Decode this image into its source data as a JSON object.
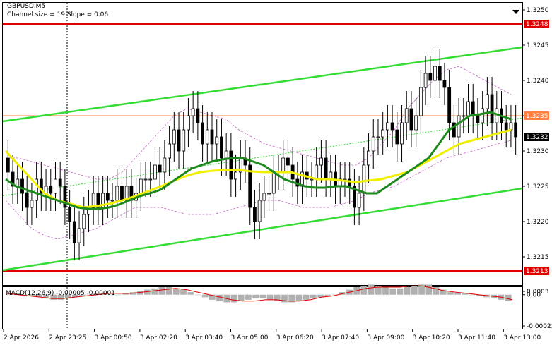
{
  "header": {
    "symbol": "GBPUSD,M5",
    "indicator": "Channel size = 19 Slope = 0.06"
  },
  "colors": {
    "bull_candle": "#ffffff",
    "bear_candle": "#000000",
    "ma_fast": "#1e8a1e",
    "ma_slow": "#f0f000",
    "channel": "#33dd33",
    "level_line": "#e00000",
    "hline": "#ff8040",
    "bollinger": "#c060c0",
    "macd_hist": "#b0b0b0",
    "macd_signal": "#e00000"
  },
  "chart_data": [
    {
      "type": "candlestick",
      "symbol": "GBPUSD",
      "timeframe": "M5",
      "ylim": [
        1.3211,
        1.3251
      ],
      "y_ticks": [
        "1.3250",
        "1.3245",
        "1.3240",
        "1.3235",
        "1.3230",
        "1.3225",
        "1.3220",
        "1.3215"
      ],
      "x_tick_labels": [
        "2 Apr 2026",
        "2 Apr 23:25",
        "3 Apr 00:50",
        "3 Apr 02:20",
        "3 Apr 03:40",
        "3 Apr 05:00",
        "3 Apr 06:20",
        "3 Apr 07:40",
        "3 Apr 09:00",
        "3 Apr 10:20",
        "3 Apr 11:40",
        "3 Apr 13:00"
      ],
      "levels": [
        {
          "label": "1.3248",
          "value": 1.3248
        },
        {
          "label": "1.3235",
          "value": 1.3235
        },
        {
          "label": "1.3213",
          "value": 1.3213
        }
      ],
      "current_price": {
        "label": "1.3232",
        "value": 1.3232
      },
      "channel_lines": [
        {
          "name": "upper",
          "from": 1.32342,
          "to": 1.32447
        },
        {
          "name": "lower",
          "from": 1.32131,
          "to": 1.32247
        }
      ],
      "close": [
        1.3227,
        1.3225,
        1.3226,
        1.3224,
        1.3222,
        1.3223,
        1.3226,
        1.3224,
        1.3225,
        1.3224,
        1.3226,
        1.3225,
        1.3222,
        1.322,
        1.3217,
        1.3219,
        1.3221,
        1.3222,
        1.3224,
        1.3222,
        1.3224,
        1.3223,
        1.3223,
        1.3225,
        1.3223,
        1.3225,
        1.3223,
        1.3224,
        1.3226,
        1.3226,
        1.3226,
        1.3228,
        1.3227,
        1.3229,
        1.3231,
        1.3233,
        1.323,
        1.3233,
        1.3235,
        1.3236,
        1.3234,
        1.3231,
        1.3233,
        1.3231,
        1.3232,
        1.3229,
        1.323,
        1.3226,
        1.3227,
        1.3229,
        1.3228,
        1.3222,
        1.322,
        1.3223,
        1.3224,
        1.3224,
        1.3227,
        1.3227,
        1.3229,
        1.3228,
        1.3226,
        1.3225,
        1.3227,
        1.3226,
        1.3226,
        1.3228,
        1.3229,
        1.3226,
        1.3227,
        1.3225,
        1.3226,
        1.3226,
        1.3225,
        1.3222,
        1.3224,
        1.3228,
        1.323,
        1.3232,
        1.3232,
        1.3233,
        1.3234,
        1.3233,
        1.3231,
        1.3234,
        1.3236,
        1.3233,
        1.3235,
        1.3239,
        1.3241,
        1.324,
        1.3242,
        1.324,
        1.3239,
        1.3234,
        1.3232,
        1.3235,
        1.3235,
        1.3237,
        1.3235,
        1.3234,
        1.3236,
        1.3238,
        1.3234,
        1.3236,
        1.3234,
        1.3233,
        1.3234,
        1.3232
      ],
      "ma_fast": [
        1.3226,
        1.3225,
        1.32245,
        1.3224,
        1.32235,
        1.3223,
        1.32225,
        1.3222,
        1.32218,
        1.32218,
        1.3222,
        1.32224,
        1.3223,
        1.32236,
        1.3224,
        1.32245,
        1.32255,
        1.32265,
        1.32275,
        1.3228,
        1.32285,
        1.32288,
        1.3229,
        1.3229,
        1.32285,
        1.3228,
        1.3227,
        1.3226,
        1.32255,
        1.3225,
        1.32248,
        1.32248,
        1.3225,
        1.3225,
        1.32245,
        1.3224,
        1.3224,
        1.3225,
        1.3226,
        1.3227,
        1.3228,
        1.3229,
        1.3231,
        1.3233,
        1.3234,
        1.3235,
        1.32352,
        1.32355,
        1.3235,
        1.32345
      ],
      "ma_slow": [
        1.323,
        1.3228,
        1.3226,
        1.3224,
        1.3223,
        1.32225,
        1.3222,
        1.32222,
        1.32225,
        1.3223,
        1.32236,
        1.32243,
        1.3225,
        1.32258,
        1.32265,
        1.3227,
        1.32272,
        1.32273,
        1.32273,
        1.32271,
        1.3227,
        1.3227,
        1.3227,
        1.32265,
        1.3226,
        1.3226,
        1.32258,
        1.32256,
        1.32258,
        1.3226,
        1.32265,
        1.3227,
        1.3228,
        1.3229,
        1.323,
        1.3231,
        1.32315,
        1.3232,
        1.32325,
        1.3233
      ],
      "bollinger_upper": [
        1.3229,
        1.3229,
        1.32285,
        1.3228,
        1.32275,
        1.3227,
        1.32265,
        1.3226,
        1.3226,
        1.3227,
        1.3229,
        1.3231,
        1.3233,
        1.3235,
        1.3236,
        1.32355,
        1.3235,
        1.32345,
        1.3233,
        1.3232,
        1.3231,
        1.32305,
        1.323,
        1.32295,
        1.3229,
        1.32285,
        1.3228,
        1.3228,
        1.3229,
        1.3231,
        1.3233,
        1.3236,
        1.3238,
        1.324,
        1.32415,
        1.3242,
        1.3241,
        1.324,
        1.3239,
        1.3238
      ],
      "bollinger_lower": [
        1.3223,
        1.3221,
        1.3219,
        1.3218,
        1.32175,
        1.3218,
        1.32185,
        1.3219,
        1.322,
        1.3221,
        1.3222,
        1.3222,
        1.3222,
        1.32215,
        1.3221,
        1.3221,
        1.3221,
        1.32215,
        1.3222,
        1.32225,
        1.3223,
        1.3223,
        1.32225,
        1.3222,
        1.3222,
        1.3222,
        1.32225,
        1.3223,
        1.3224,
        1.32245,
        1.3225,
        1.3226,
        1.3227,
        1.3228,
        1.3229,
        1.32295,
        1.323,
        1.32305,
        1.3231,
        1.32315
      ]
    },
    {
      "type": "bar",
      "title": "MACD(12,26,9) -0.00005 -0.00001",
      "ylim": [
        -0.00027,
        6e-05
      ],
      "y_ticks": [
        "0.0003",
        "0.00",
        "-0.00023"
      ],
      "histogram": [
        1e-05,
        1e-05,
        0.0,
        -1e-05,
        -2e-05,
        -3e-05,
        -4e-05,
        -4e-05,
        -3e-05,
        -2e-05,
        -1e-05,
        0.0,
        1e-05,
        1e-05,
        0.0,
        0.0,
        1e-05,
        2e-05,
        3e-05,
        4e-05,
        5e-05,
        6e-05,
        6e-05,
        5e-05,
        4e-05,
        2e-05,
        0.0,
        -2e-05,
        -4e-05,
        -5e-05,
        -6e-05,
        -6e-05,
        -5e-05,
        -4e-05,
        -3e-05,
        -3e-05,
        -4e-05,
        -5e-05,
        -6e-05,
        -6e-05,
        -5e-05,
        -4e-05,
        -3e-05,
        -2e-05,
        -1e-05,
        0.0,
        2e-05,
        4e-05,
        6e-05,
        7e-05,
        8e-05,
        7e-05,
        6e-05,
        5e-05,
        5e-05,
        6e-05,
        7e-05,
        8e-05,
        8e-05,
        6e-05,
        4e-05,
        2e-05,
        1e-05,
        1e-05,
        0.0,
        -1e-05,
        -2e-05,
        -3e-05,
        -4e-05,
        -5e-05
      ],
      "signal": [
        1e-05,
        0.0,
        -1e-05,
        -2e-05,
        -3e-05,
        -3e-05,
        -2e-05,
        -1e-05,
        0.0,
        1e-05,
        1e-05,
        1e-05,
        2e-05,
        3e-05,
        4e-05,
        5e-05,
        4e-05,
        2e-05,
        0.0,
        -2e-05,
        -4e-05,
        -5e-05,
        -5e-05,
        -4e-05,
        -4e-05,
        -5e-05,
        -5e-05,
        -4e-05,
        -2e-05,
        -1e-05,
        1e-05,
        3e-05,
        5e-05,
        6e-05,
        6e-05,
        6e-05,
        7e-05,
        7e-05,
        5e-05,
        3e-05,
        2e-05,
        1e-05,
        0.0,
        -1e-05,
        -2e-05,
        -4e-05
      ]
    }
  ]
}
